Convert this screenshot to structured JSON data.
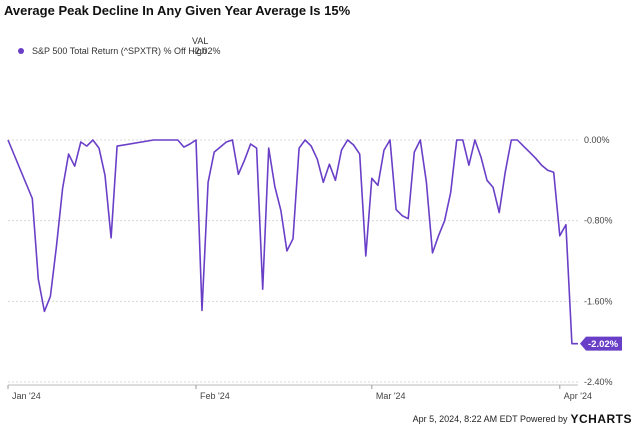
{
  "chart_data": {
    "type": "line",
    "title": "Average Peak Decline In Any Given Year Average Is 15%",
    "legend_header": "VAL",
    "series": [
      {
        "name": "S&P 500 Total Return (^SPXTR) % Off High",
        "color": "#6a3fc8",
        "last_value_label": "-2.02%",
        "x": [
          "2024-01-01",
          "2024-01-05",
          "2024-01-06",
          "2024-01-07",
          "2024-01-08",
          "2024-01-09",
          "2024-01-10",
          "2024-01-11",
          "2024-01-12",
          "2024-01-13",
          "2024-01-14",
          "2024-01-15",
          "2024-01-16",
          "2024-01-17",
          "2024-01-18",
          "2024-01-19",
          "2024-01-25",
          "2024-01-26",
          "2024-01-27",
          "2024-01-28",
          "2024-01-29",
          "2024-01-30",
          "2024-01-31",
          "2024-02-01",
          "2024-02-02",
          "2024-02-03",
          "2024-02-04",
          "2024-02-05",
          "2024-02-06",
          "2024-02-07",
          "2024-02-08",
          "2024-02-09",
          "2024-02-10",
          "2024-02-11",
          "2024-02-12",
          "2024-02-13",
          "2024-02-14",
          "2024-02-15",
          "2024-02-16",
          "2024-02-17",
          "2024-02-18",
          "2024-02-19",
          "2024-02-20",
          "2024-02-21",
          "2024-02-22",
          "2024-02-23",
          "2024-02-24",
          "2024-02-25",
          "2024-02-26",
          "2024-02-27",
          "2024-02-28",
          "2024-02-29",
          "2024-03-01",
          "2024-03-02",
          "2024-03-03",
          "2024-03-04",
          "2024-03-05",
          "2024-03-06",
          "2024-03-07",
          "2024-03-08",
          "2024-03-09",
          "2024-03-10",
          "2024-03-11",
          "2024-03-12",
          "2024-03-13",
          "2024-03-14",
          "2024-03-15",
          "2024-03-16",
          "2024-03-17",
          "2024-03-18",
          "2024-03-19",
          "2024-03-20",
          "2024-03-21",
          "2024-03-22",
          "2024-03-23",
          "2024-03-24",
          "2024-03-25",
          "2024-03-26",
          "2024-03-27",
          "2024-03-28",
          "2024-03-29",
          "2024-03-30",
          "2024-03-31",
          "2024-04-01",
          "2024-04-02",
          "2024-04-03",
          "2024-04-04"
        ],
        "values": [
          0.0,
          -0.58,
          -1.38,
          -1.7,
          -1.55,
          -1.05,
          -0.48,
          -0.14,
          -0.26,
          -0.02,
          -0.06,
          0.0,
          -0.08,
          -0.35,
          -0.97,
          -0.06,
          0.0,
          0.0,
          0.0,
          0.0,
          0.0,
          -0.07,
          -0.04,
          0.0,
          -1.69,
          -0.42,
          -0.12,
          -0.07,
          -0.02,
          0.0,
          -0.34,
          -0.2,
          -0.04,
          -0.08,
          -1.48,
          -0.08,
          -0.46,
          -0.7,
          -1.1,
          -0.98,
          -0.08,
          0.0,
          -0.06,
          -0.19,
          -0.42,
          -0.24,
          -0.4,
          -0.1,
          0.0,
          -0.05,
          -0.14,
          -1.15,
          -0.38,
          -0.45,
          -0.1,
          0.0,
          -0.69,
          -0.75,
          -0.78,
          -0.12,
          0.0,
          -0.42,
          -1.12,
          -0.95,
          -0.8,
          -0.52,
          0.0,
          0.0,
          -0.25,
          0.0,
          -0.17,
          -0.4,
          -0.47,
          -0.72,
          -0.32,
          0.0,
          0.0,
          -0.06,
          -0.12,
          -0.18,
          -0.25,
          -0.3,
          -0.32,
          -0.95,
          -0.84,
          -2.02,
          -2.02
        ]
      }
    ],
    "y_ticks": [
      "0.00%",
      "-0.80%",
      "-1.60%",
      "-2.40%"
    ],
    "ylim": [
      -2.4,
      0.0
    ],
    "x_ticks": [
      {
        "date": "2024-01-01",
        "label": "Jan '24"
      },
      {
        "date": "2024-02-01",
        "label": "Feb '24"
      },
      {
        "date": "2024-03-01",
        "label": "Mar '24"
      },
      {
        "date": "2024-04-01",
        "label": "Apr '24"
      }
    ],
    "grid": "horizontal"
  },
  "footer": {
    "timestamp": "Apr 5, 2024, 8:22 AM EDT Powered by",
    "brand": "YCHARTS"
  }
}
